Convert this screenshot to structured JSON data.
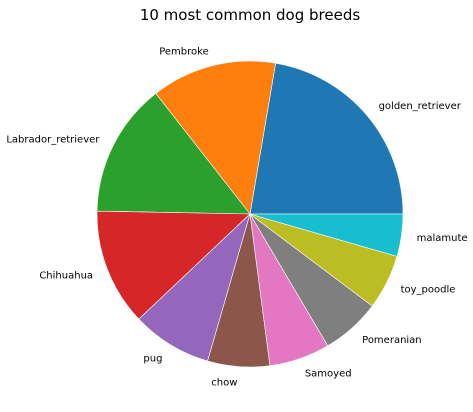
{
  "chart_data": {
    "type": "pie",
    "title": "10 most common dog breeds",
    "slices": [
      {
        "label": "golden_retriever",
        "value": 150,
        "color": "#1f77b4"
      },
      {
        "label": "Pembroke",
        "value": 89,
        "color": "#ff7f0e"
      },
      {
        "label": "Labrador_retriever",
        "value": 95,
        "color": "#2ca02c"
      },
      {
        "label": "Chihuahua",
        "value": 83,
        "color": "#d62728"
      },
      {
        "label": "pug",
        "value": 57,
        "color": "#9467bd"
      },
      {
        "label": "chow",
        "value": 44,
        "color": "#8c564b"
      },
      {
        "label": "Samoyed",
        "value": 43,
        "color": "#e377c2"
      },
      {
        "label": "Pomeranian",
        "value": 42,
        "color": "#7f7f7f"
      },
      {
        "label": "toy_poodle",
        "value": 39,
        "color": "#bcbd22"
      },
      {
        "label": "malamute",
        "value": 30,
        "color": "#17becf"
      }
    ],
    "start_angle_deg": 0,
    "direction": "counterclockwise"
  }
}
